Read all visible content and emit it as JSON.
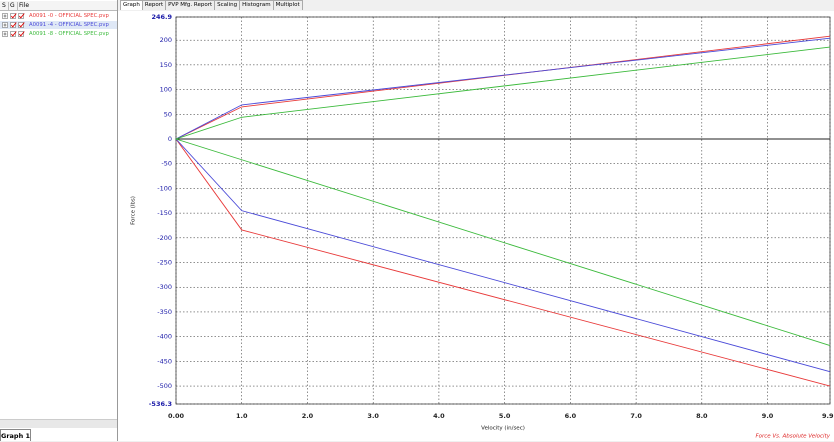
{
  "ui": {
    "tabs": [
      "Graph",
      "Report",
      "PVP Mfg. Report",
      "Scaling",
      "Histogram",
      "Multiplot"
    ],
    "file_columns": [
      "S",
      "G",
      "File"
    ],
    "bottom_tab": "Graph 1"
  },
  "chart_data": {
    "type": "line",
    "title": "Force Vs. Absolute Velocity",
    "x_label": "Velocity (in/sec)",
    "y_label": "Force (lbs)",
    "x": [
      9.95,
      1,
      0,
      1,
      9.95
    ],
    "series": [
      {
        "name": "A0091 -0 - OFFICIAL SPEC.pvp",
        "color": "#e83a3a",
        "values": [
          -500,
          -184,
          0,
          65,
          208
        ]
      },
      {
        "name": "A0091 -4 - OFFICIAL SPEC.pvp",
        "color": "#4a4ad8",
        "values": [
          -471,
          -145,
          0,
          69,
          204
        ]
      },
      {
        "name": "A0091 -8 - OFFICIAL SPEC.pvp",
        "color": "#3cba3c",
        "values": [
          -418,
          -42,
          0,
          44,
          186
        ]
      }
    ],
    "xlim": [
      0,
      9.95
    ],
    "ylim": [
      -536.3,
      246.9
    ],
    "xticks": [
      {
        "value": 0,
        "label": "0.00"
      },
      {
        "value": 1,
        "label": "1.0"
      },
      {
        "value": 2,
        "label": "2.0"
      },
      {
        "value": 3,
        "label": "3.0"
      },
      {
        "value": 4,
        "label": "4.0"
      },
      {
        "value": 5,
        "label": "5.0"
      },
      {
        "value": 6,
        "label": "6.0"
      },
      {
        "value": 7,
        "label": "7.0"
      },
      {
        "value": 8,
        "label": "8.0"
      },
      {
        "value": 9,
        "label": "9.0"
      },
      9.95
    ],
    "yticks": [
      246.9,
      200,
      150,
      100,
      50,
      0,
      -50,
      -100,
      -150,
      -200,
      -250,
      -300,
      -350,
      -400,
      -450,
      -500,
      -536.3
    ],
    "grid": true
  }
}
